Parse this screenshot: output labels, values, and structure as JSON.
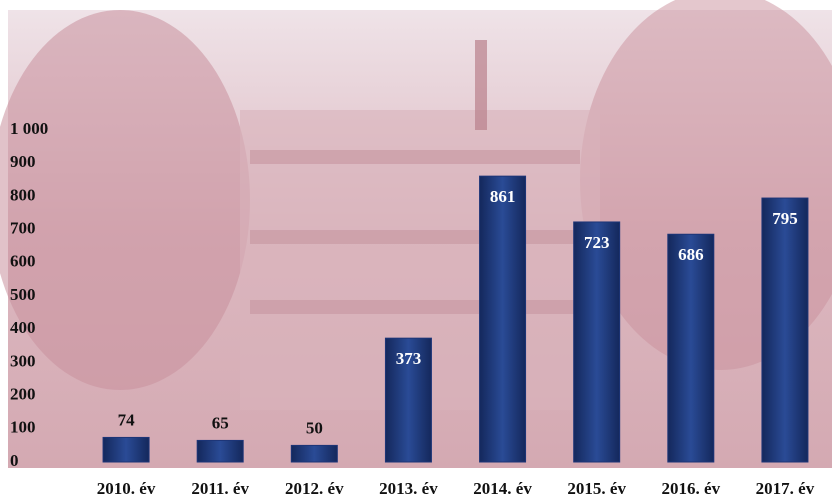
{
  "chart_data": {
    "type": "bar",
    "categories": [
      "2010. év",
      "2011. év",
      "2012. év",
      "2013. év",
      "2014. év",
      "2015. év",
      "2016. év",
      "2017. év"
    ],
    "values": [
      74,
      65,
      50,
      373,
      861,
      723,
      686,
      795
    ],
    "color": "#1d3577",
    "ylim": [
      0,
      1000
    ],
    "yticks": [
      0,
      100,
      200,
      300,
      400,
      500,
      600,
      700,
      800,
      900,
      {
        "value": 1000,
        "label": "1 000"
      }
    ],
    "grid": false
  }
}
